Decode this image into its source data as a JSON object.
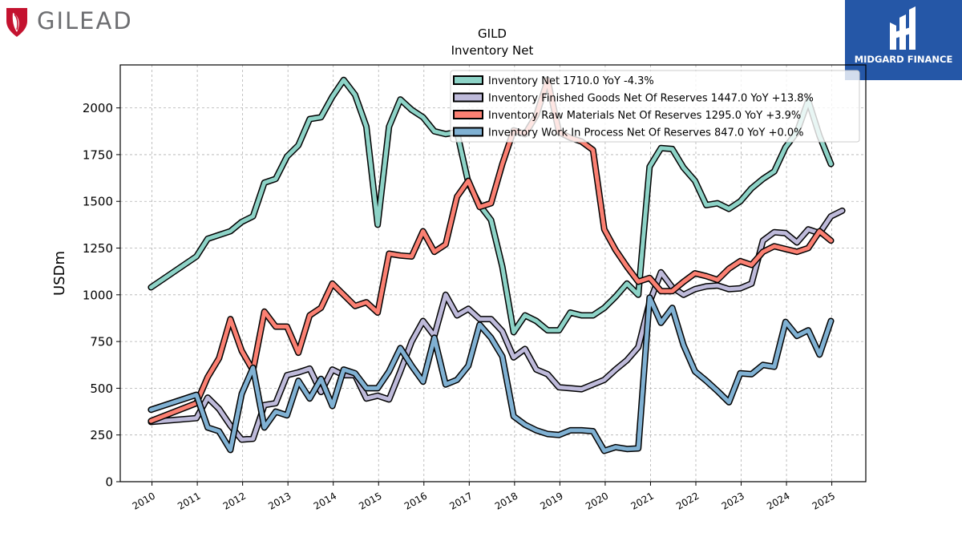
{
  "brand_left": {
    "name": "GILEAD",
    "color": "#c4122f",
    "text_color": "#6d6e71"
  },
  "brand_right": {
    "name": "MIDGARD FINANCE",
    "bg_color": "#2557a7"
  },
  "chart_data": {
    "type": "line",
    "title": "GILD",
    "subtitle": "Inventory Net",
    "xlabel": "",
    "ylabel": "USDm",
    "xlim": [
      2009.3,
      2025.75
    ],
    "ylim": [
      0,
      2230
    ],
    "x_ticks": [
      2010,
      2011,
      2012,
      2013,
      2014,
      2015,
      2016,
      2017,
      2018,
      2019,
      2020,
      2021,
      2022,
      2023,
      2024,
      2025
    ],
    "x_tick_labels": [
      "2010",
      "2011",
      "2012",
      "2013",
      "2014",
      "2015",
      "2016",
      "2017",
      "2018",
      "2019",
      "2020",
      "2021",
      "2022",
      "2023",
      "2024",
      "2025"
    ],
    "y_ticks": [
      0,
      250,
      500,
      750,
      1000,
      1250,
      1500,
      1750,
      2000
    ],
    "y_tick_labels": [
      "0",
      "250",
      "500",
      "750",
      "1000",
      "1250",
      "1500",
      "1750",
      "2000"
    ],
    "grid": true,
    "legend_position": "top-right",
    "series": [
      {
        "name": "Inventory Net  1710.0 YoY -4.3%",
        "color": "#8dd3c7",
        "points": [
          [
            2009.98,
            1040
          ],
          [
            2010.98,
            1205
          ],
          [
            2011.23,
            1300
          ],
          [
            2011.48,
            1320
          ],
          [
            2011.73,
            1340
          ],
          [
            2011.98,
            1390
          ],
          [
            2012.23,
            1420
          ],
          [
            2012.48,
            1600
          ],
          [
            2012.73,
            1620
          ],
          [
            2012.98,
            1740
          ],
          [
            2013.23,
            1800
          ],
          [
            2013.48,
            1940
          ],
          [
            2013.73,
            1950
          ],
          [
            2013.98,
            2060
          ],
          [
            2014.23,
            2150
          ],
          [
            2014.48,
            2070
          ],
          [
            2014.73,
            1900
          ],
          [
            2014.98,
            1375
          ],
          [
            2015.23,
            1900
          ],
          [
            2015.48,
            2045
          ],
          [
            2015.73,
            1990
          ],
          [
            2015.98,
            1950
          ],
          [
            2016.23,
            1875
          ],
          [
            2016.48,
            1860
          ],
          [
            2016.73,
            1870
          ],
          [
            2016.98,
            1600
          ],
          [
            2017.23,
            1480
          ],
          [
            2017.48,
            1400
          ],
          [
            2017.73,
            1150
          ],
          [
            2017.98,
            800
          ],
          [
            2018.23,
            890
          ],
          [
            2018.48,
            860
          ],
          [
            2018.73,
            810
          ],
          [
            2018.98,
            810
          ],
          [
            2019.23,
            905
          ],
          [
            2019.48,
            890
          ],
          [
            2019.73,
            890
          ],
          [
            2019.98,
            930
          ],
          [
            2020.23,
            990
          ],
          [
            2020.48,
            1060
          ],
          [
            2020.73,
            1000
          ],
          [
            2020.98,
            1685
          ],
          [
            2021.23,
            1785
          ],
          [
            2021.48,
            1780
          ],
          [
            2021.73,
            1680
          ],
          [
            2021.98,
            1610
          ],
          [
            2022.23,
            1480
          ],
          [
            2022.48,
            1490
          ],
          [
            2022.73,
            1460
          ],
          [
            2022.98,
            1500
          ],
          [
            2023.23,
            1570
          ],
          [
            2023.48,
            1620
          ],
          [
            2023.73,
            1660
          ],
          [
            2023.98,
            1790
          ],
          [
            2024.23,
            1870
          ],
          [
            2024.48,
            2040
          ],
          [
            2024.73,
            1850
          ],
          [
            2024.98,
            1700
          ]
        ]
      },
      {
        "name": "Inventory Finished Goods Net Of Reserves  1447.0 YoY +13.8%",
        "color": "#bebada",
        "points": [
          [
            2009.98,
            320
          ],
          [
            2010.98,
            340
          ],
          [
            2011.23,
            450
          ],
          [
            2011.48,
            390
          ],
          [
            2011.73,
            300
          ],
          [
            2011.98,
            225
          ],
          [
            2012.23,
            230
          ],
          [
            2012.48,
            410
          ],
          [
            2012.73,
            420
          ],
          [
            2012.98,
            570
          ],
          [
            2013.23,
            585
          ],
          [
            2013.48,
            605
          ],
          [
            2013.73,
            480
          ],
          [
            2013.98,
            600
          ],
          [
            2014.23,
            570
          ],
          [
            2014.48,
            570
          ],
          [
            2014.73,
            445
          ],
          [
            2014.98,
            460
          ],
          [
            2015.23,
            440
          ],
          [
            2015.48,
            590
          ],
          [
            2015.73,
            750
          ],
          [
            2015.98,
            860
          ],
          [
            2016.23,
            780
          ],
          [
            2016.48,
            1000
          ],
          [
            2016.73,
            890
          ],
          [
            2016.98,
            925
          ],
          [
            2017.23,
            870
          ],
          [
            2017.48,
            870
          ],
          [
            2017.73,
            805
          ],
          [
            2017.98,
            665
          ],
          [
            2018.23,
            710
          ],
          [
            2018.48,
            600
          ],
          [
            2018.73,
            575
          ],
          [
            2018.98,
            505
          ],
          [
            2019.23,
            500
          ],
          [
            2019.48,
            495
          ],
          [
            2019.73,
            520
          ],
          [
            2019.98,
            545
          ],
          [
            2020.23,
            600
          ],
          [
            2020.48,
            650
          ],
          [
            2020.73,
            720
          ],
          [
            2020.98,
            960
          ],
          [
            2021.23,
            1120
          ],
          [
            2021.48,
            1040
          ],
          [
            2021.73,
            1000
          ],
          [
            2021.98,
            1030
          ],
          [
            2022.23,
            1045
          ],
          [
            2022.48,
            1050
          ],
          [
            2022.73,
            1030
          ],
          [
            2022.98,
            1035
          ],
          [
            2023.23,
            1060
          ],
          [
            2023.48,
            1290
          ],
          [
            2023.73,
            1335
          ],
          [
            2023.98,
            1330
          ],
          [
            2024.23,
            1280
          ],
          [
            2024.48,
            1350
          ],
          [
            2024.73,
            1330
          ],
          [
            2024.98,
            1420
          ],
          [
            2025.23,
            1450
          ]
        ]
      },
      {
        "name": "Inventory Raw Materials Net Of Reserves  1295.0 YoY +3.9%",
        "color": "#fb8072",
        "points": [
          [
            2009.98,
            325
          ],
          [
            2010.98,
            420
          ],
          [
            2011.23,
            560
          ],
          [
            2011.48,
            660
          ],
          [
            2011.73,
            870
          ],
          [
            2011.98,
            700
          ],
          [
            2012.23,
            595
          ],
          [
            2012.48,
            910
          ],
          [
            2012.73,
            830
          ],
          [
            2012.98,
            830
          ],
          [
            2013.23,
            690
          ],
          [
            2013.48,
            890
          ],
          [
            2013.73,
            930
          ],
          [
            2013.98,
            1060
          ],
          [
            2014.23,
            1000
          ],
          [
            2014.48,
            940
          ],
          [
            2014.73,
            960
          ],
          [
            2014.98,
            905
          ],
          [
            2015.23,
            1220
          ],
          [
            2015.48,
            1210
          ],
          [
            2015.73,
            1205
          ],
          [
            2015.98,
            1340
          ],
          [
            2016.23,
            1230
          ],
          [
            2016.48,
            1270
          ],
          [
            2016.73,
            1525
          ],
          [
            2016.98,
            1610
          ],
          [
            2017.23,
            1470
          ],
          [
            2017.48,
            1490
          ],
          [
            2017.73,
            1700
          ],
          [
            2017.98,
            1880
          ],
          [
            2018.23,
            1860
          ],
          [
            2018.48,
            1960
          ],
          [
            2018.73,
            2150
          ],
          [
            2018.98,
            1870
          ],
          [
            2019.23,
            1840
          ],
          [
            2019.48,
            1820
          ],
          [
            2019.73,
            1775
          ],
          [
            2019.98,
            1350
          ],
          [
            2020.23,
            1240
          ],
          [
            2020.48,
            1150
          ],
          [
            2020.73,
            1070
          ],
          [
            2020.98,
            1090
          ],
          [
            2021.23,
            1020
          ],
          [
            2021.48,
            1020
          ],
          [
            2021.73,
            1070
          ],
          [
            2021.98,
            1115
          ],
          [
            2022.23,
            1100
          ],
          [
            2022.48,
            1080
          ],
          [
            2022.73,
            1140
          ],
          [
            2022.98,
            1180
          ],
          [
            2023.23,
            1160
          ],
          [
            2023.48,
            1230
          ],
          [
            2023.73,
            1260
          ],
          [
            2023.98,
            1245
          ],
          [
            2024.23,
            1230
          ],
          [
            2024.48,
            1250
          ],
          [
            2024.73,
            1340
          ],
          [
            2024.98,
            1290
          ]
        ]
      },
      {
        "name": "Inventory Work In Process Net Of Reserves  847.0 YoY +0.0%",
        "color": "#80b1d3",
        "points": [
          [
            2009.98,
            385
          ],
          [
            2010.98,
            465
          ],
          [
            2011.23,
            290
          ],
          [
            2011.48,
            270
          ],
          [
            2011.73,
            170
          ],
          [
            2011.98,
            470
          ],
          [
            2012.23,
            610
          ],
          [
            2012.48,
            290
          ],
          [
            2012.73,
            375
          ],
          [
            2012.98,
            355
          ],
          [
            2013.23,
            540
          ],
          [
            2013.48,
            445
          ],
          [
            2013.73,
            550
          ],
          [
            2013.98,
            405
          ],
          [
            2014.23,
            600
          ],
          [
            2014.48,
            580
          ],
          [
            2014.73,
            500
          ],
          [
            2014.98,
            500
          ],
          [
            2015.23,
            590
          ],
          [
            2015.48,
            715
          ],
          [
            2015.73,
            620
          ],
          [
            2015.98,
            535
          ],
          [
            2016.23,
            770
          ],
          [
            2016.48,
            520
          ],
          [
            2016.73,
            545
          ],
          [
            2016.98,
            620
          ],
          [
            2017.23,
            840
          ],
          [
            2017.48,
            770
          ],
          [
            2017.73,
            670
          ],
          [
            2017.98,
            350
          ],
          [
            2018.23,
            305
          ],
          [
            2018.48,
            275
          ],
          [
            2018.73,
            255
          ],
          [
            2018.98,
            250
          ],
          [
            2019.23,
            275
          ],
          [
            2019.48,
            275
          ],
          [
            2019.73,
            270
          ],
          [
            2019.98,
            165
          ],
          [
            2020.23,
            185
          ],
          [
            2020.48,
            175
          ],
          [
            2020.73,
            178
          ],
          [
            2020.98,
            985
          ],
          [
            2021.23,
            850
          ],
          [
            2021.48,
            930
          ],
          [
            2021.73,
            730
          ],
          [
            2021.98,
            590
          ],
          [
            2022.23,
            540
          ],
          [
            2022.48,
            485
          ],
          [
            2022.73,
            425
          ],
          [
            2022.98,
            580
          ],
          [
            2023.23,
            575
          ],
          [
            2023.48,
            625
          ],
          [
            2023.73,
            615
          ],
          [
            2023.98,
            855
          ],
          [
            2024.23,
            780
          ],
          [
            2024.48,
            810
          ],
          [
            2024.73,
            680
          ],
          [
            2024.98,
            860
          ]
        ]
      }
    ]
  }
}
